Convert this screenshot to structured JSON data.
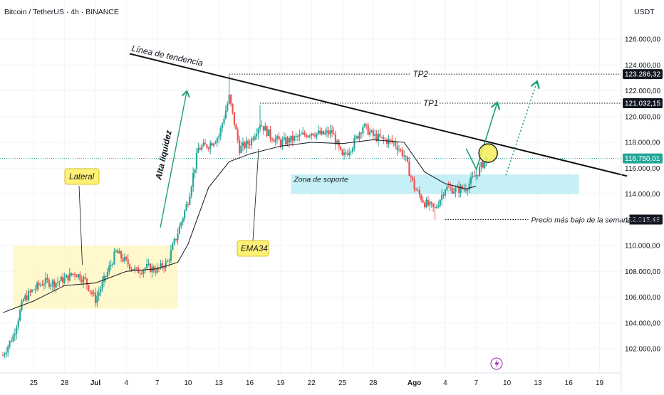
{
  "header": {
    "symbol": "Bitcoin / TetherUS · 4h · BINANCE",
    "currency": "USDT"
  },
  "colors": {
    "up": "#26a69a",
    "down": "#ef5350",
    "ema": "#131722",
    "trend": "#111111",
    "support": "#b2ebf2",
    "lateral": "#fff7c7",
    "label_bg": "#fff176",
    "current": "#26a69a",
    "levels": "#131722",
    "arrow": "#1f9e76"
  },
  "chart_data": {
    "type": "candlestick",
    "title": "Bitcoin / TetherUS · 4h · BINANCE",
    "y_unit": "USDT",
    "ylim": [
      100000,
      127500
    ],
    "y_ticks": [
      102000,
      104000,
      106000,
      108000,
      110000,
      112000,
      114000,
      116000,
      118000,
      120000,
      122000,
      124000,
      126000
    ],
    "y_tick_labels": [
      "102.000,00",
      "104.000,00",
      "106.000,00",
      "108.000,00",
      "110.000,00",
      "112.000,00",
      "114.000,00",
      "116.000,00",
      "118.000,00",
      "120.000,00",
      "122.000,00",
      "124.000,00",
      "126.000,00"
    ],
    "x_range": [
      "Jun 22",
      "Aug 20"
    ],
    "x_ticks": [
      {
        "date": "Jun 25",
        "label": "25"
      },
      {
        "date": "Jun 28",
        "label": "28"
      },
      {
        "date": "Jul 1",
        "label": "Jul"
      },
      {
        "date": "Jul 4",
        "label": "4"
      },
      {
        "date": "Jul 7",
        "label": "7"
      },
      {
        "date": "Jul 10",
        "label": "10"
      },
      {
        "date": "Jul 13",
        "label": "13"
      },
      {
        "date": "Jul 16",
        "label": "16"
      },
      {
        "date": "Jul 19",
        "label": "19"
      },
      {
        "date": "Jul 22",
        "label": "22"
      },
      {
        "date": "Jul 25",
        "label": "25"
      },
      {
        "date": "Jul 28",
        "label": "28"
      },
      {
        "date": "Aug 1",
        "label": "Ago"
      },
      {
        "date": "Aug 4",
        "label": "4"
      },
      {
        "date": "Aug 7",
        "label": "7"
      },
      {
        "date": "Aug 10",
        "label": "10"
      },
      {
        "date": "Aug 13",
        "label": "13"
      },
      {
        "date": "Aug 16",
        "label": "16"
      },
      {
        "date": "Aug 19",
        "label": "19"
      }
    ],
    "price_path": [
      {
        "date": "Jun 22",
        "price": 101500
      },
      {
        "date": "Jun 23",
        "price": 103000
      },
      {
        "date": "Jun 24",
        "price": 105800
      },
      {
        "date": "Jun 25",
        "price": 106600
      },
      {
        "date": "Jun 26",
        "price": 107200
      },
      {
        "date": "Jun 27",
        "price": 107100
      },
      {
        "date": "Jun 28",
        "price": 107400
      },
      {
        "date": "Jun 29",
        "price": 107900
      },
      {
        "date": "Jun 30",
        "price": 107300
      },
      {
        "date": "Jul 1",
        "price": 105800
      },
      {
        "date": "Jul 2",
        "price": 107600
      },
      {
        "date": "Jul 3",
        "price": 109500
      },
      {
        "date": "Jul 4",
        "price": 108700
      },
      {
        "date": "Jul 5",
        "price": 108000
      },
      {
        "date": "Jul 6",
        "price": 108300
      },
      {
        "date": "Jul 7",
        "price": 108100
      },
      {
        "date": "Jul 8",
        "price": 108700
      },
      {
        "date": "Jul 9",
        "price": 111000
      },
      {
        "date": "Jul 10",
        "price": 113500
      },
      {
        "date": "Jul 11",
        "price": 117500
      },
      {
        "date": "Jul 12",
        "price": 117800
      },
      {
        "date": "Jul 13",
        "price": 118500
      },
      {
        "date": "Jul 14",
        "price": 121500
      },
      {
        "date": "Jul 15",
        "price": 117500
      },
      {
        "date": "Jul 16",
        "price": 118000
      },
      {
        "date": "Jul 17",
        "price": 119500
      },
      {
        "date": "Jul 18",
        "price": 118500
      },
      {
        "date": "Jul 19",
        "price": 118000
      },
      {
        "date": "Jul 20",
        "price": 118200
      },
      {
        "date": "Jul 21",
        "price": 118500
      },
      {
        "date": "Jul 22",
        "price": 118800
      },
      {
        "date": "Jul 23",
        "price": 118600
      },
      {
        "date": "Jul 24",
        "price": 118800
      },
      {
        "date": "Jul 25",
        "price": 116800
      },
      {
        "date": "Jul 26",
        "price": 117800
      },
      {
        "date": "Jul 27",
        "price": 119300
      },
      {
        "date": "Jul 28",
        "price": 118500
      },
      {
        "date": "Jul 29",
        "price": 118200
      },
      {
        "date": "Jul 30",
        "price": 118000
      },
      {
        "date": "Jul 31",
        "price": 117000
      },
      {
        "date": "Aug 1",
        "price": 114500
      },
      {
        "date": "Aug 2",
        "price": 113300
      },
      {
        "date": "Aug 3",
        "price": 112800
      },
      {
        "date": "Aug 4",
        "price": 114500
      },
      {
        "date": "Aug 5",
        "price": 114300
      },
      {
        "date": "Aug 6",
        "price": 114500
      },
      {
        "date": "Aug 7",
        "price": 115500
      },
      {
        "date": "Aug 8",
        "price": 116750
      }
    ],
    "ema34": [
      {
        "date": "Jun 22",
        "value": 104800
      },
      {
        "date": "Jun 25",
        "value": 105700
      },
      {
        "date": "Jun 28",
        "value": 106900
      },
      {
        "date": "Jul 1",
        "value": 107100
      },
      {
        "date": "Jul 4",
        "value": 108000
      },
      {
        "date": "Jul 7",
        "value": 108200
      },
      {
        "date": "Jul 9",
        "value": 108700
      },
      {
        "date": "Jul 10",
        "value": 110100
      },
      {
        "date": "Jul 12",
        "value": 114500
      },
      {
        "date": "Jul 14",
        "value": 116500
      },
      {
        "date": "Jul 16",
        "value": 117100
      },
      {
        "date": "Jul 19",
        "value": 117700
      },
      {
        "date": "Jul 22",
        "value": 118000
      },
      {
        "date": "Jul 25",
        "value": 117900
      },
      {
        "date": "Jul 28",
        "value": 118200
      },
      {
        "date": "Jul 31",
        "value": 118000
      },
      {
        "date": "Aug 2",
        "value": 115700
      },
      {
        "date": "Aug 4",
        "value": 114800
      },
      {
        "date": "Aug 6",
        "value": 114400
      },
      {
        "date": "Aug 7",
        "value": 114600
      }
    ],
    "current_price": {
      "value": 116750.01,
      "label": "116.750,01"
    },
    "levels": [
      {
        "name": "TP2",
        "value": 123286.32,
        "label": "123.286,32",
        "from": "Jul 14"
      },
      {
        "name": "TP1",
        "value": 121032.15,
        "label": "121.032,15",
        "from": "Jul 17"
      },
      {
        "name": "Precio más bajo de la semana",
        "value": 112015.46,
        "label": "112.015,46",
        "from": "Aug 4"
      }
    ],
    "trendline": {
      "label": "Línea de tendencia",
      "points": [
        {
          "date": "Jun 22",
          "price": 125200
        },
        {
          "date": "Aug 20",
          "price": 114300
        }
      ]
    },
    "zones": [
      {
        "label": "Zona de soporte",
        "x": [
          "Jul 20",
          "Aug 17"
        ],
        "y": [
          114000,
          115500
        ]
      },
      {
        "label": "Lateral",
        "x": [
          "Jun 23",
          "Jul 9"
        ],
        "y": [
          105100,
          110000
        ]
      }
    ],
    "annotations": [
      {
        "label": "Alta liquidez",
        "kind": "arrow",
        "from": {
          "date": "Jul 8",
          "price": 111400
        },
        "to": {
          "date": "Jul 10",
          "price": 123000
        }
      },
      {
        "label": "EMA34",
        "kind": "callout",
        "target": {
          "date": "Jul 17",
          "price": 117500
        }
      },
      {
        "label": "",
        "kind": "projection-solid",
        "points": [
          {
            "date": "Aug 7",
            "price": 117400
          },
          {
            "date": "Aug 8",
            "price": 115800
          },
          {
            "date": "Aug 10",
            "price": 120900
          }
        ]
      },
      {
        "label": "",
        "kind": "projection-dotted",
        "points": [
          {
            "date": "Aug 11",
            "price": 116000
          },
          {
            "date": "Aug 14",
            "price": 123200
          }
        ]
      },
      {
        "label": "",
        "kind": "circle",
        "center": {
          "date": "Aug 9",
          "price": 117000
        }
      }
    ]
  }
}
